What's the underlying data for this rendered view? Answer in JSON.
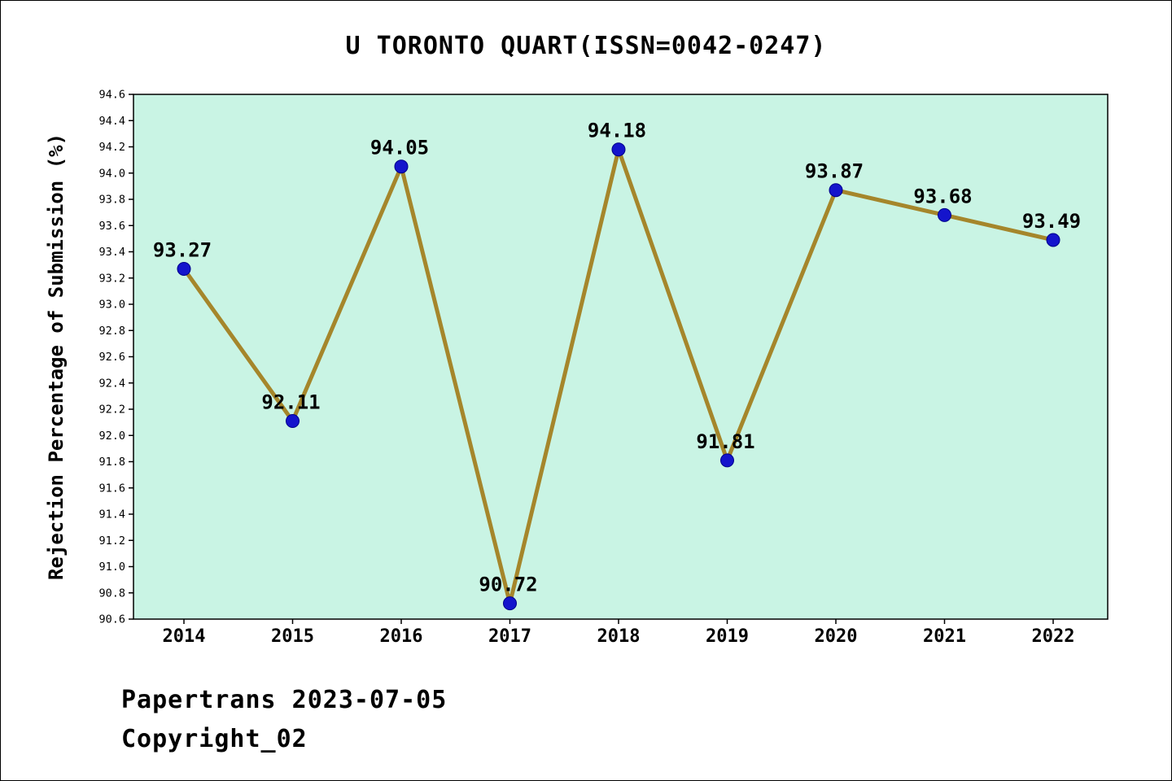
{
  "chart_data": {
    "type": "line",
    "title": "U TORONTO QUART(ISSN=0042-0247)",
    "ylabel": "Rejection Percentage of Submission (%)",
    "xlabel": "",
    "categories": [
      "2014",
      "2015",
      "2016",
      "2017",
      "2018",
      "2019",
      "2020",
      "2021",
      "2022"
    ],
    "values": [
      93.27,
      92.11,
      94.05,
      90.72,
      94.18,
      91.81,
      93.87,
      93.68,
      93.49
    ],
    "point_labels": [
      "93.27",
      "92.11",
      "94.05",
      "90.72",
      "94.18",
      "91.81",
      "93.87",
      "93.68",
      "93.49"
    ],
    "ylim": [
      90.6,
      94.6
    ],
    "ytick_step": 0.2,
    "grid": false,
    "legend_position": "none",
    "colors": {
      "line": "#a5862b",
      "marker_fill": "#1414cc",
      "marker_edge": "#00008b",
      "plot_bg": "#c9f4e4",
      "page_bg": "#ffffff",
      "text": "#000000"
    }
  },
  "footer": {
    "line1": "Papertrans 2023-07-05",
    "line2": "Copyright_02"
  }
}
